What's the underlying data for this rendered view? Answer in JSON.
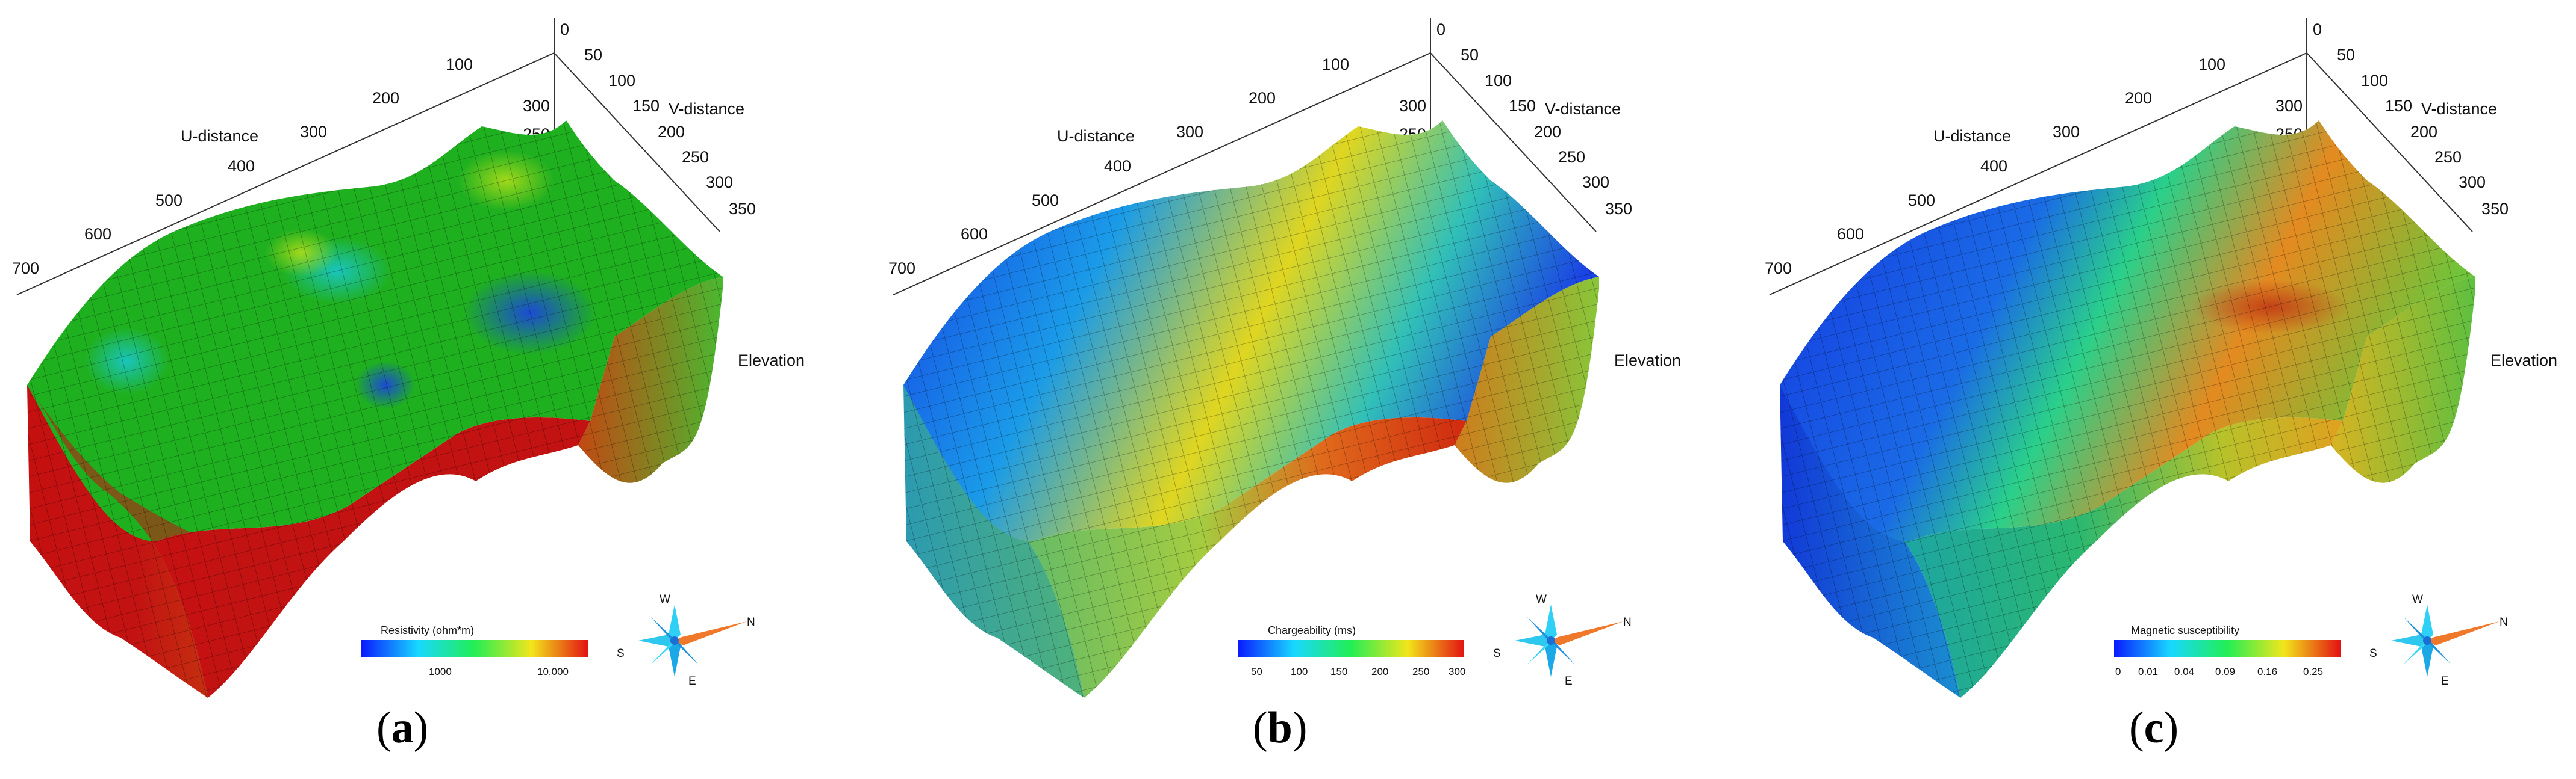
{
  "panels": [
    {
      "id": "a",
      "caption_open": "(",
      "caption_letter": "a",
      "caption_close": ")",
      "colorbar": {
        "label": "Resistivity (ohm*m)",
        "ticks": [
          "1000",
          "10,000"
        ],
        "colors": [
          "#0a1aff",
          "#18d8ff",
          "#22ee55",
          "#f2e61b",
          "#e31212"
        ]
      },
      "surface_colors": [
        "#1fb020",
        "#45d04a",
        "#1ec6c8",
        "#2a4be0",
        "#9fd61a",
        "#c61010"
      ]
    },
    {
      "id": "b",
      "caption_open": "(",
      "caption_letter": "b",
      "caption_close": ")",
      "colorbar": {
        "label": "Chargeability (ms)",
        "ticks": [
          "50",
          "100",
          "150",
          "200",
          "250",
          "300"
        ],
        "colors": [
          "#0a1aff",
          "#18d8ff",
          "#22ee55",
          "#f2e61b",
          "#e31212"
        ]
      },
      "surface_colors": [
        "#1535e6",
        "#1a9be8",
        "#22d0c8",
        "#e4d820",
        "#55bb66",
        "#d22a10"
      ]
    },
    {
      "id": "c",
      "caption_open": "(",
      "caption_letter": "c",
      "caption_close": ")",
      "colorbar": {
        "label": "Magnetic susceptibility",
        "ticks": [
          "0",
          "0.01",
          "0.04",
          "0.09",
          "0.16",
          "0.25"
        ],
        "colors": [
          "#0a1aff",
          "#18d8ff",
          "#22ee55",
          "#f2e61b",
          "#e31212"
        ]
      },
      "surface_colors": [
        "#1432e0",
        "#1aa0ea",
        "#2ad08a",
        "#e49a20",
        "#6fc43a",
        "#c03a16"
      ]
    }
  ],
  "axes": {
    "u_title": "U-distance",
    "v_title": "V-distance",
    "z_title": "Elevation",
    "u_ticks": [
      "0",
      "100",
      "200",
      "300",
      "400",
      "500",
      "600",
      "700"
    ],
    "v_ticks": [
      "50",
      "100",
      "150",
      "200",
      "250",
      "300",
      "350"
    ],
    "z_ticks": [
      "300",
      "250"
    ]
  },
  "compass": {
    "w": "W",
    "n": "N",
    "s": "S",
    "e": "E"
  }
}
